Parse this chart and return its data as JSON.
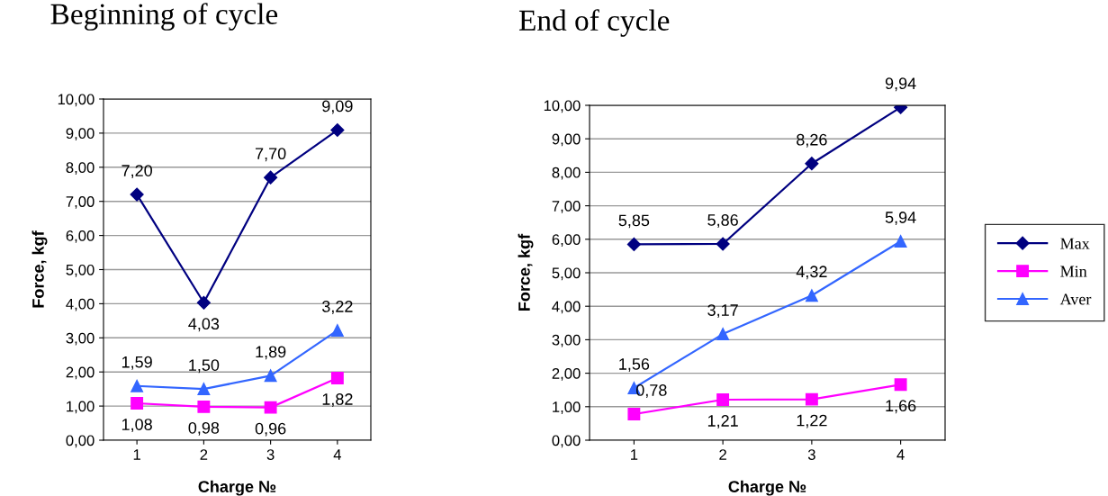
{
  "chart_data": [
    {
      "type": "line",
      "title": "Beginning of cycle",
      "xlabel": "Charge №",
      "ylabel": "Force, kgf",
      "categories": [
        "1",
        "2",
        "3",
        "4"
      ],
      "ylim": [
        0,
        10
      ],
      "yticks": [
        {
          "value": 0,
          "label": "0,00"
        },
        {
          "value": 1,
          "label": "1,00"
        },
        {
          "value": 2,
          "label": "2,00"
        },
        {
          "value": 3,
          "label": "3,00"
        },
        {
          "value": 4,
          "label": "4,00"
        },
        {
          "value": 5,
          "label": "5,00"
        },
        {
          "value": 6,
          "label": "6,00"
        },
        {
          "value": 7,
          "label": "7,00"
        },
        {
          "value": 8,
          "label": "8,00"
        },
        {
          "value": 9,
          "label": "9,00"
        },
        {
          "value": 10,
          "label": "10,00"
        }
      ],
      "grid": "y",
      "legend": false,
      "series": [
        {
          "color": "#000080",
          "marker": "diamond",
          "values": [
            7.2,
            4.03,
            7.7,
            9.09
          ],
          "value_labels": [
            "7,20",
            "4,03",
            "7,70",
            "9,09"
          ]
        },
        {
          "color": "#ff00ff",
          "marker": "square",
          "values": [
            1.08,
            0.98,
            0.96,
            1.82
          ],
          "value_labels": [
            "1,08",
            "0,98",
            "0,96",
            "1,82"
          ]
        },
        {
          "color": "#3366ff",
          "marker": "triangle",
          "values": [
            1.59,
            1.5,
            1.89,
            3.22
          ],
          "value_labels": [
            "1,59",
            "1,50",
            "1,89",
            "3,22"
          ]
        }
      ]
    },
    {
      "type": "line",
      "title": "End of cycle",
      "xlabel": "Charge №",
      "ylabel": "Force, kgf",
      "categories": [
        "1",
        "2",
        "3",
        "4"
      ],
      "ylim": [
        0,
        10
      ],
      "yticks": [
        {
          "value": 0,
          "label": "0,00"
        },
        {
          "value": 1,
          "label": "1,00"
        },
        {
          "value": 2,
          "label": "2,00"
        },
        {
          "value": 3,
          "label": "3,00"
        },
        {
          "value": 4,
          "label": "4,00"
        },
        {
          "value": 5,
          "label": "5,00"
        },
        {
          "value": 6,
          "label": "6,00"
        },
        {
          "value": 7,
          "label": "7,00"
        },
        {
          "value": 8,
          "label": "8,00"
        },
        {
          "value": 9,
          "label": "9,00"
        },
        {
          "value": 10,
          "label": "10,00"
        }
      ],
      "grid": "y",
      "legend": "right",
      "series": [
        {
          "name": "Max",
          "color": "#000080",
          "marker": "diamond",
          "values": [
            5.85,
            5.86,
            8.26,
            9.94
          ],
          "value_labels": [
            "5,85",
            "5,86",
            "8,26",
            "9,94"
          ]
        },
        {
          "name": "Min",
          "color": "#ff00ff",
          "marker": "square",
          "values": [
            0.78,
            1.21,
            1.22,
            1.66
          ],
          "value_labels": [
            "0,78",
            "1,21",
            "1,22",
            "1,66"
          ]
        },
        {
          "name": "Aver",
          "color": "#3366ff",
          "marker": "triangle",
          "values": [
            1.56,
            3.17,
            4.32,
            5.94
          ],
          "value_labels": [
            "1,56",
            "3,17",
            "4,32",
            "5,94"
          ]
        }
      ]
    }
  ]
}
